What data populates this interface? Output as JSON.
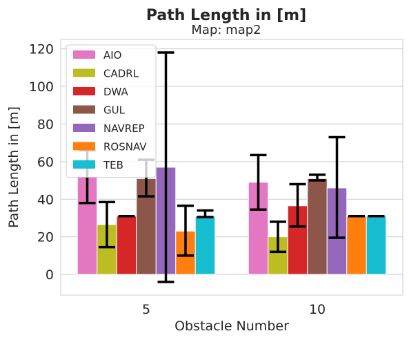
{
  "chart_data": {
    "type": "bar",
    "title": "Path Length in [m]",
    "subtitle": "Map: map2",
    "xlabel": "Obstacle Number",
    "ylabel": "Path Length in [m]",
    "categories": [
      "5",
      "10"
    ],
    "ylim": [
      -11,
      125
    ],
    "yticks": [
      0,
      20,
      40,
      60,
      80,
      100,
      120
    ],
    "grid": "horizontal",
    "legend_position": "top-left",
    "series": [
      {
        "name": "AIO",
        "color": "#e377c2",
        "values": [
          52,
          49
        ],
        "err_low": [
          38,
          34.5
        ],
        "err_high": [
          66,
          63.5
        ]
      },
      {
        "name": "CADRL",
        "color": "#bcbd22",
        "values": [
          26.5,
          20
        ],
        "err_low": [
          14.5,
          12
        ],
        "err_high": [
          38.5,
          28
        ]
      },
      {
        "name": "DWA",
        "color": "#d62728",
        "values": [
          31,
          36.5
        ],
        "err_low": [
          31,
          25.5
        ],
        "err_high": [
          31,
          48
        ]
      },
      {
        "name": "GUL",
        "color": "#8c564b",
        "values": [
          51,
          51
        ],
        "err_low": [
          41.5,
          50
        ],
        "err_high": [
          61,
          53
        ]
      },
      {
        "name": "NAVREP",
        "color": "#9467bd",
        "values": [
          57,
          46
        ],
        "err_low": [
          -4,
          19.5
        ],
        "err_high": [
          118,
          73
        ]
      },
      {
        "name": "ROSNAV",
        "color": "#ff7f0e",
        "values": [
          23,
          31
        ],
        "err_low": [
          10,
          31
        ],
        "err_high": [
          36.5,
          31
        ]
      },
      {
        "name": "TEB",
        "color": "#17becf",
        "values": [
          31,
          31
        ],
        "err_low": [
          30.5,
          31
        ],
        "err_high": [
          34,
          31
        ]
      }
    ]
  }
}
